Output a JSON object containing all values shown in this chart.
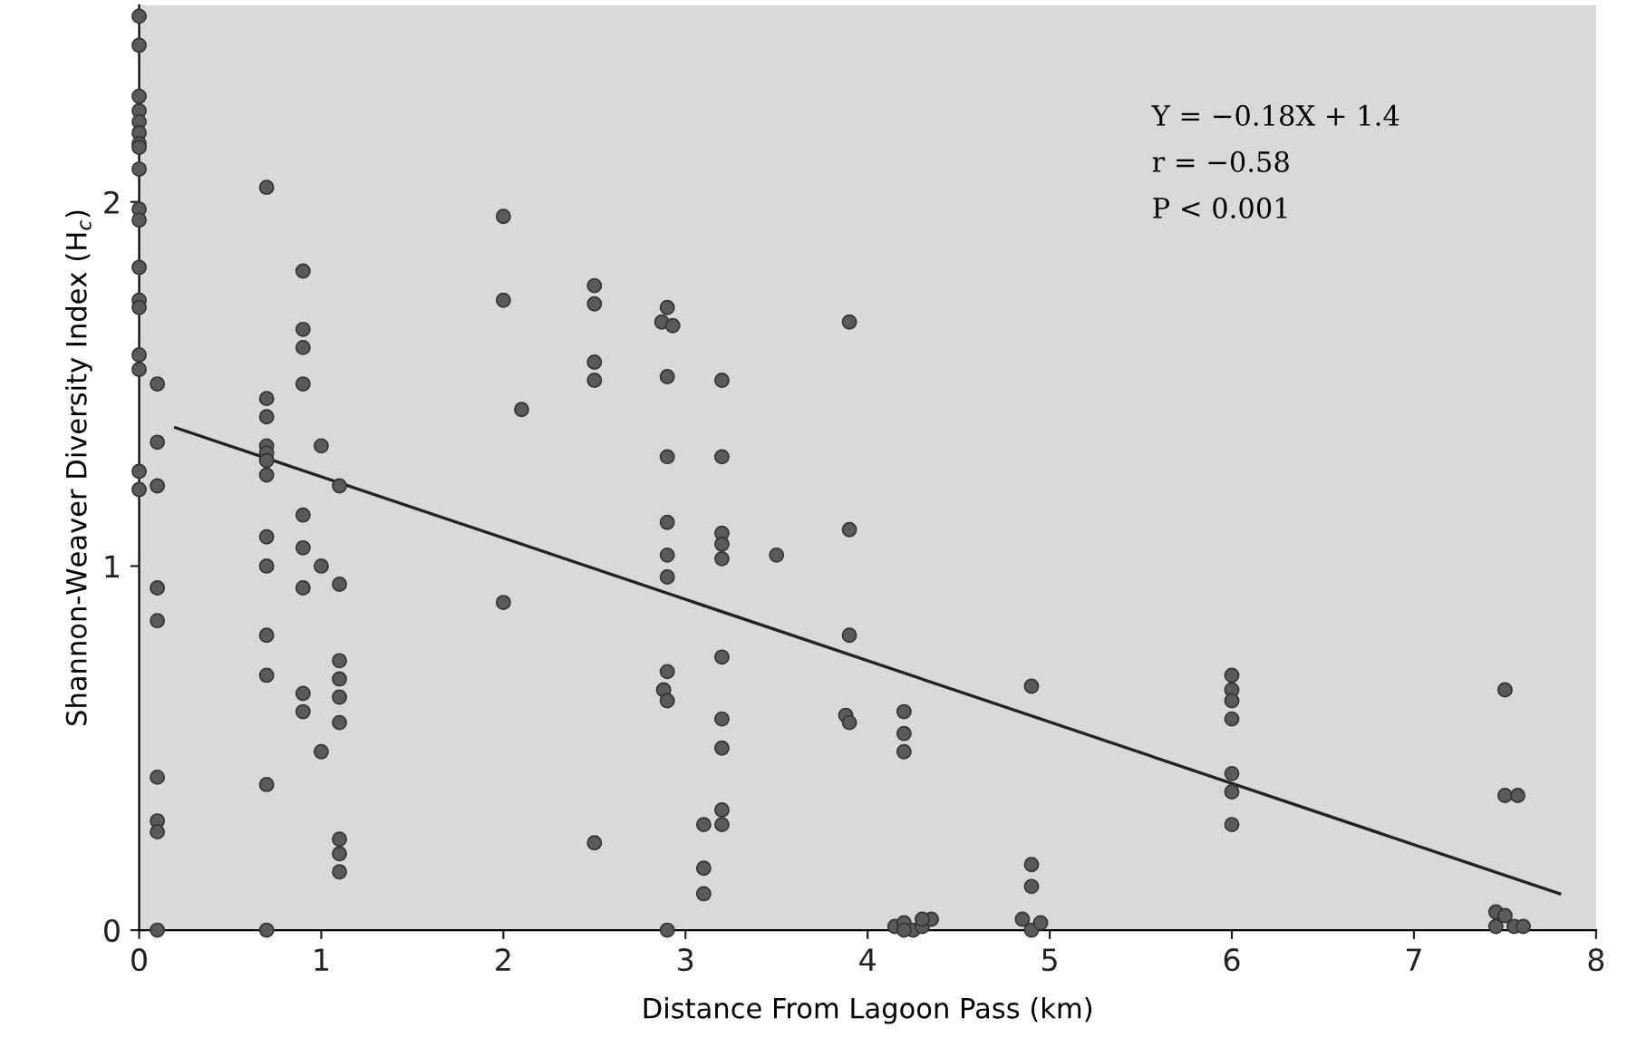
{
  "chart_data": {
    "type": "scatter",
    "xlabel": "Distance From Lagoon Pass (km)",
    "ylabel": "Shannon-Weaver Diversity Index (H$_{c}$)",
    "xlim": [
      0,
      8
    ],
    "ylim": [
      0,
      2.54
    ],
    "xticks": [
      0,
      1,
      2,
      3,
      4,
      5,
      6,
      7,
      8
    ],
    "yticks": [
      0,
      1,
      2
    ],
    "grid": false,
    "legend": false,
    "marker": "circle",
    "annotations": [
      "Y = −0.18X + 1.4",
      "r = −0.58",
      "P < 0.001"
    ],
    "series": [
      {
        "color": "#5a5a5a",
        "x": [
          0,
          0,
          0,
          0,
          0,
          0,
          0,
          0,
          0,
          0,
          0,
          0,
          0,
          0,
          0,
          0,
          0,
          0,
          0.1,
          0.1,
          0.1,
          0.1,
          0.1,
          0.1,
          0.1,
          0.1,
          0.1,
          0.7,
          0.7,
          0.7,
          0.7,
          0.7,
          0.7,
          0.7,
          0.7,
          0.7,
          0.7,
          0.7,
          0.7,
          0.7,
          0.9,
          0.9,
          0.9,
          0.9,
          0.9,
          0.9,
          0.9,
          0.9,
          0.9,
          1.0,
          1.0,
          1.0,
          1.1,
          1.1,
          1.1,
          1.1,
          1.1,
          1.1,
          1.1,
          1.1,
          1.1,
          2.0,
          2.0,
          2.0,
          2.1,
          2.5,
          2.5,
          2.5,
          2.5,
          2.5,
          2.9,
          2.87,
          2.93,
          2.9,
          2.9,
          2.9,
          2.9,
          2.9,
          2.9,
          2.88,
          2.9,
          2.9,
          3.1,
          3.1,
          3.1,
          3.2,
          3.2,
          3.2,
          3.2,
          3.2,
          3.2,
          3.2,
          3.2,
          3.2,
          3.2,
          3.5,
          3.9,
          3.9,
          3.9,
          3.88,
          3.9,
          4.2,
          4.2,
          4.2,
          4.15,
          4.2,
          4.25,
          4.3,
          4.35,
          4.2,
          4.3,
          4.9,
          4.9,
          4.9,
          4.85,
          4.9,
          4.95,
          6.0,
          6.0,
          6.0,
          6.0,
          6.0,
          6.0,
          6.0,
          7.5,
          7.5,
          7.57,
          7.45,
          7.5,
          7.45,
          7.55,
          7.6
        ],
        "values": [
          2.51,
          2.43,
          2.29,
          2.25,
          2.22,
          2.19,
          2.16,
          2.15,
          2.09,
          1.98,
          1.95,
          1.82,
          1.73,
          1.71,
          1.58,
          1.54,
          1.26,
          1.21,
          1.5,
          1.34,
          1.22,
          0.94,
          0.85,
          0.42,
          0.3,
          0.27,
          0,
          2.04,
          1.46,
          1.41,
          1.33,
          1.31,
          1.29,
          1.25,
          1.08,
          1.0,
          0.81,
          0.7,
          0.4,
          0,
          1.81,
          1.65,
          1.6,
          1.5,
          1.14,
          1.05,
          0.94,
          0.65,
          0.6,
          1.33,
          1.0,
          0.49,
          1.22,
          0.95,
          0.74,
          0.69,
          0.64,
          0.57,
          0.25,
          0.21,
          0.16,
          1.96,
          1.73,
          0.9,
          1.43,
          1.77,
          1.72,
          1.56,
          1.51,
          0.24,
          1.71,
          1.67,
          1.66,
          1.52,
          1.3,
          1.12,
          1.03,
          0.97,
          0.71,
          0.66,
          0.63,
          0,
          0.29,
          0.17,
          0.1,
          1.51,
          1.3,
          1.09,
          1.06,
          1.02,
          0.75,
          0.58,
          0.5,
          0.33,
          0.29,
          1.03,
          1.67,
          1.1,
          0.81,
          0.59,
          0.57,
          0.6,
          0.54,
          0.49,
          0.01,
          0.02,
          0.0,
          0.01,
          0.03,
          0.0,
          0.03,
          0.67,
          0.18,
          0.12,
          0.03,
          0.0,
          0.02,
          0.7,
          0.66,
          0.63,
          0.58,
          0.43,
          0.38,
          0.29,
          0.66,
          0.37,
          0.37,
          0.05,
          0.04,
          0.01,
          0.01,
          0.01
        ]
      },
      {
        "type": "line",
        "color": "#222222",
        "marker": "none",
        "x": [
          0.2,
          7.8
        ],
        "values": [
          1.38,
          0.1
        ]
      }
    ]
  }
}
